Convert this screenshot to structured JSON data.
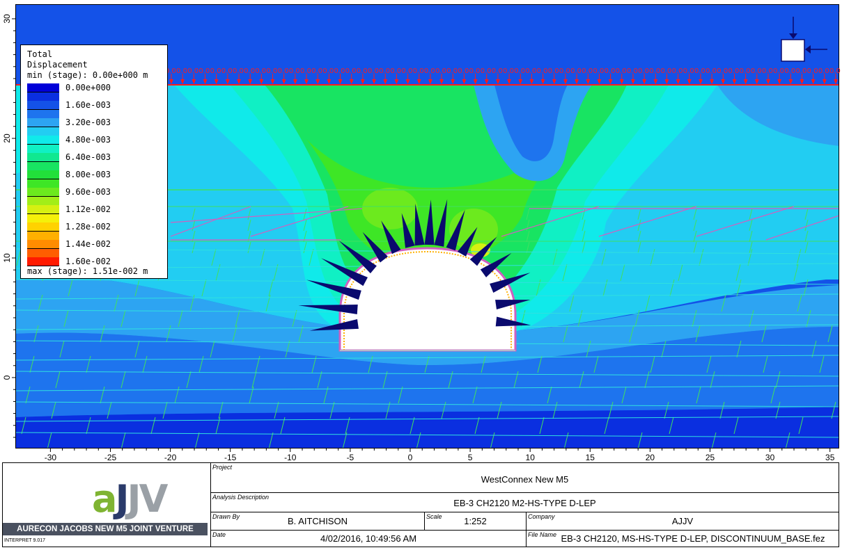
{
  "legend": {
    "title_line1": "Total",
    "title_line2": "Displacement",
    "min_text": "min (stage): 0.00e+000 m",
    "max_text": "max (stage): 1.51e-002 m",
    "entries": [
      {
        "label": "0.00e+000",
        "color": "#0000d8"
      },
      {
        "label": "",
        "color": "#0a2fe0"
      },
      {
        "label": "1.60e-003",
        "color": "#1452e8"
      },
      {
        "label": "",
        "color": "#1e74ee"
      },
      {
        "label": "3.20e-003",
        "color": "#2da4f2"
      },
      {
        "label": "",
        "color": "#22cdf2"
      },
      {
        "label": "4.80e-003",
        "color": "#10eaea"
      },
      {
        "label": "",
        "color": "#10f0c4"
      },
      {
        "label": "6.40e-003",
        "color": "#10e890"
      },
      {
        "label": "",
        "color": "#18e462"
      },
      {
        "label": "8.00e-003",
        "color": "#22e03a"
      },
      {
        "label": "",
        "color": "#3ee626"
      },
      {
        "label": "9.60e-003",
        "color": "#6cea1e"
      },
      {
        "label": "",
        "color": "#a2ee18"
      },
      {
        "label": "1.12e-002",
        "color": "#d6f012"
      },
      {
        "label": "",
        "color": "#f4f00a"
      },
      {
        "label": "1.28e-002",
        "color": "#ffd200"
      },
      {
        "label": "",
        "color": "#ffb000"
      },
      {
        "label": "1.44e-002",
        "color": "#ff8c00"
      },
      {
        "label": "",
        "color": "#ff5e00"
      },
      {
        "label": "1.60e-002",
        "color": "#ff1a00"
      }
    ]
  },
  "axes": {
    "x_ticks": [
      "-30",
      "-25",
      "-20",
      "-15",
      "-10",
      "-5",
      "0",
      "5",
      "10",
      "15",
      "20",
      "25",
      "30",
      "35"
    ],
    "y_ticks": [
      "30",
      "20",
      "10",
      "0"
    ]
  },
  "surface_load": {
    "label": "0.0",
    "count": 60,
    "color": "#ff1a1a"
  },
  "colors": {
    "boundary_load": "#ff1a1a",
    "bolts": "#0a0a6e",
    "joints": "#40e060",
    "bedding": "#30e0e0",
    "liner": "#d060c0",
    "stress_icon": "#0a0a6e"
  },
  "titleblock": {
    "logo_text": "aJJV",
    "logo_band": "AURECON JACOBS NEW M5 JOINT VENTURE",
    "version": "INTERPRET 9.017",
    "project_label": "Project",
    "project_value": "WestConnex New M5",
    "analysis_label": "Analysis Description",
    "analysis_value": "EB-3 CH2120 M2-HS-TYPE D-LEP",
    "drawn_label": "Drawn By",
    "drawn_value": "B. AITCHISON",
    "scale_label": "Scale",
    "scale_value": "1:252",
    "company_label": "Company",
    "company_value": "AJJV",
    "date_label": "Date",
    "date_value": "4/02/2016, 10:49:56 AM",
    "file_label": "File Name",
    "file_value": "EB-3 CH2120, MS-HS-TYPE D-LEP, DISCONTINUUM_BASE.fez"
  }
}
